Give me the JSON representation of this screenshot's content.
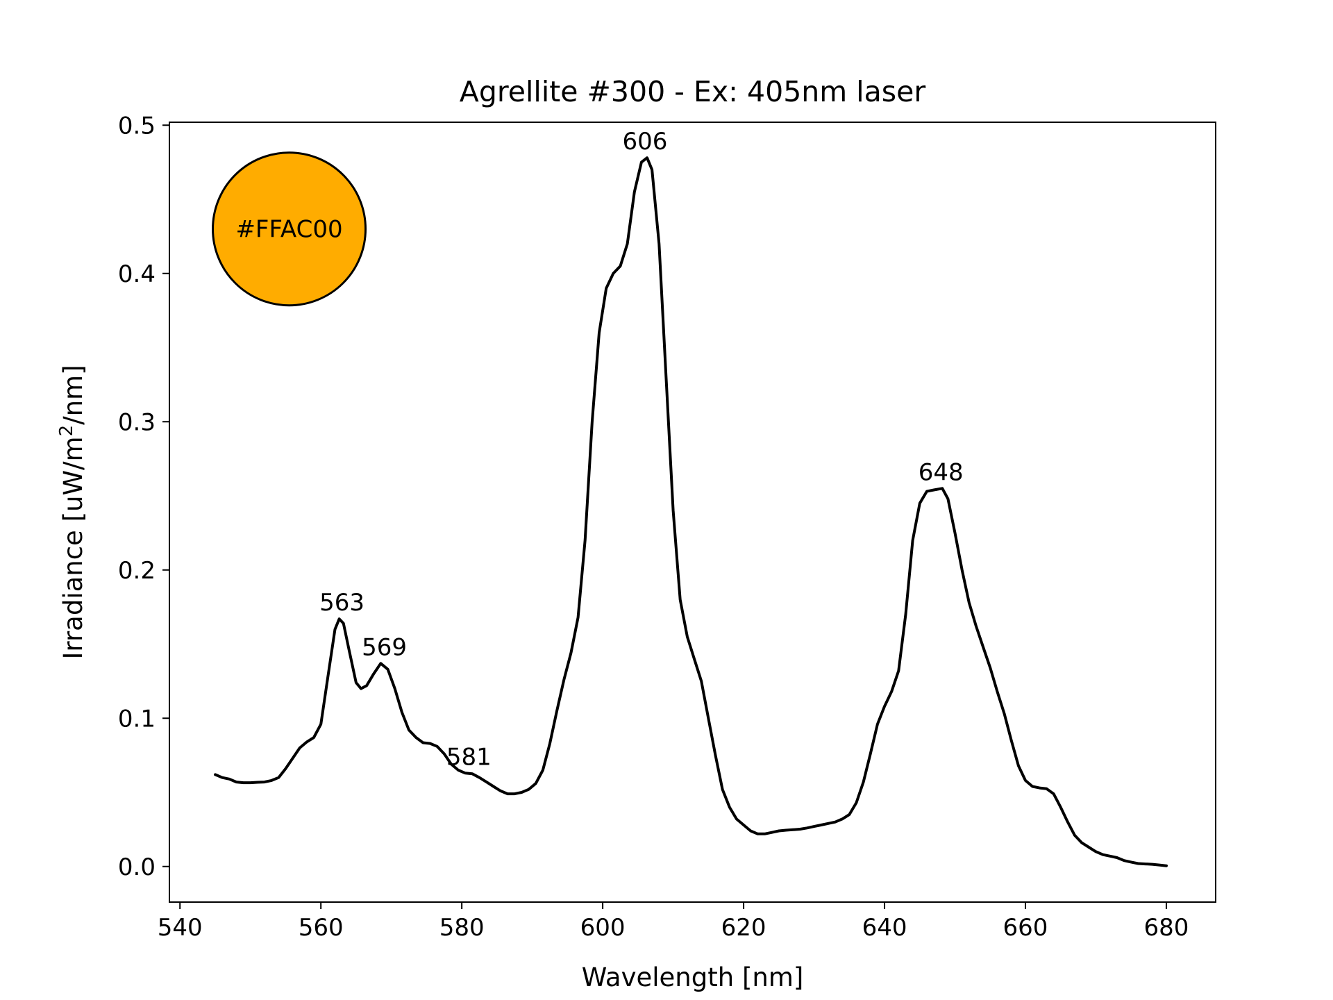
{
  "chart_data": {
    "type": "line",
    "title": "Agrellite #300 - Ex: 405nm laser",
    "xlabel": "Wavelength [nm]",
    "ylabel_main": "Irradiance [uW/m",
    "ylabel_sup": "2",
    "ylabel_tail": "/nm]",
    "xlim": [
      538.5,
      687
    ],
    "ylim": [
      -0.024,
      0.502
    ],
    "x_ticks": [
      540,
      560,
      580,
      600,
      620,
      640,
      660,
      680
    ],
    "x_tick_labels": [
      "540",
      "560",
      "580",
      "600",
      "620",
      "640",
      "660",
      "680"
    ],
    "y_ticks": [
      0.0,
      0.1,
      0.2,
      0.3,
      0.4,
      0.5
    ],
    "y_tick_labels": [
      "0.0",
      "0.1",
      "0.2",
      "0.3",
      "0.4",
      "0.5"
    ],
    "grid": false,
    "series": [
      {
        "color": "#000000",
        "points": [
          [
            545,
            0.062
          ],
          [
            546,
            0.06
          ],
          [
            547,
            0.059
          ],
          [
            548,
            0.057
          ],
          [
            549,
            0.0565
          ],
          [
            550,
            0.0565
          ],
          [
            551,
            0.0568
          ],
          [
            552,
            0.057
          ],
          [
            553,
            0.058
          ],
          [
            554,
            0.06
          ],
          [
            555,
            0.066
          ],
          [
            556,
            0.073
          ],
          [
            557,
            0.08
          ],
          [
            558,
            0.084
          ],
          [
            559,
            0.087
          ],
          [
            560,
            0.096
          ],
          [
            561,
            0.128
          ],
          [
            562,
            0.16
          ],
          [
            562.6,
            0.167
          ],
          [
            563.2,
            0.164
          ],
          [
            564,
            0.146
          ],
          [
            565,
            0.124
          ],
          [
            565.7,
            0.12
          ],
          [
            566.5,
            0.122
          ],
          [
            567.5,
            0.13
          ],
          [
            568.5,
            0.137
          ],
          [
            569.5,
            0.133
          ],
          [
            570.5,
            0.12
          ],
          [
            571.5,
            0.104
          ],
          [
            572.5,
            0.092
          ],
          [
            573.5,
            0.087
          ],
          [
            574.5,
            0.0835
          ],
          [
            575.5,
            0.083
          ],
          [
            576.5,
            0.081
          ],
          [
            577.5,
            0.076
          ],
          [
            578.5,
            0.069
          ],
          [
            579.5,
            0.065
          ],
          [
            580.5,
            0.063
          ],
          [
            581.5,
            0.0625
          ],
          [
            582.5,
            0.06
          ],
          [
            583.5,
            0.057
          ],
          [
            584.5,
            0.054
          ],
          [
            585.5,
            0.051
          ],
          [
            586.5,
            0.049
          ],
          [
            587.5,
            0.049
          ],
          [
            588.5,
            0.05
          ],
          [
            589.5,
            0.052
          ],
          [
            590.5,
            0.056
          ],
          [
            591.5,
            0.065
          ],
          [
            592.5,
            0.083
          ],
          [
            593.5,
            0.105
          ],
          [
            594.5,
            0.126
          ],
          [
            595.5,
            0.144
          ],
          [
            596.5,
            0.168
          ],
          [
            597.5,
            0.22
          ],
          [
            598.5,
            0.3
          ],
          [
            599.5,
            0.36
          ],
          [
            600.5,
            0.39
          ],
          [
            601.5,
            0.4
          ],
          [
            602.5,
            0.405
          ],
          [
            603.5,
            0.42
          ],
          [
            604.5,
            0.455
          ],
          [
            605.5,
            0.475
          ],
          [
            606.3,
            0.478
          ],
          [
            607.0,
            0.47
          ],
          [
            608,
            0.42
          ],
          [
            609,
            0.33
          ],
          [
            610,
            0.24
          ],
          [
            611,
            0.18
          ],
          [
            612,
            0.155
          ],
          [
            613,
            0.14
          ],
          [
            614,
            0.125
          ],
          [
            615,
            0.1
          ],
          [
            616,
            0.075
          ],
          [
            617,
            0.052
          ],
          [
            618,
            0.04
          ],
          [
            619,
            0.032
          ],
          [
            620,
            0.028
          ],
          [
            621,
            0.024
          ],
          [
            622,
            0.022
          ],
          [
            623,
            0.022
          ],
          [
            624,
            0.023
          ],
          [
            625,
            0.024
          ],
          [
            626,
            0.0245
          ],
          [
            627,
            0.0248
          ],
          [
            628,
            0.0252
          ],
          [
            629,
            0.026
          ],
          [
            630,
            0.027
          ],
          [
            631,
            0.028
          ],
          [
            632,
            0.029
          ],
          [
            633,
            0.03
          ],
          [
            634,
            0.032
          ],
          [
            635,
            0.035
          ],
          [
            636,
            0.043
          ],
          [
            637,
            0.057
          ],
          [
            638,
            0.076
          ],
          [
            639,
            0.096
          ],
          [
            640,
            0.108
          ],
          [
            641,
            0.118
          ],
          [
            642,
            0.132
          ],
          [
            643,
            0.17
          ],
          [
            644,
            0.22
          ],
          [
            645,
            0.245
          ],
          [
            646,
            0.253
          ],
          [
            647,
            0.254
          ],
          [
            648.2,
            0.255
          ],
          [
            649,
            0.248
          ],
          [
            650,
            0.225
          ],
          [
            651,
            0.2
          ],
          [
            652,
            0.178
          ],
          [
            653,
            0.162
          ],
          [
            654,
            0.148
          ],
          [
            655,
            0.134
          ],
          [
            656,
            0.118
          ],
          [
            657,
            0.103
          ],
          [
            658,
            0.085
          ],
          [
            659,
            0.068
          ],
          [
            660,
            0.058
          ],
          [
            661,
            0.054
          ],
          [
            662,
            0.053
          ],
          [
            663,
            0.0525
          ],
          [
            664,
            0.049
          ],
          [
            665,
            0.04
          ],
          [
            666,
            0.03
          ],
          [
            667,
            0.021
          ],
          [
            668,
            0.016
          ],
          [
            669,
            0.013
          ],
          [
            670,
            0.01
          ],
          [
            671,
            0.008
          ],
          [
            672,
            0.007
          ],
          [
            673,
            0.006
          ],
          [
            674,
            0.004
          ],
          [
            675,
            0.003
          ],
          [
            676,
            0.002
          ],
          [
            677,
            0.0017
          ],
          [
            678,
            0.0015
          ],
          [
            679,
            0.001
          ],
          [
            680,
            0.0005
          ]
        ]
      }
    ],
    "peak_labels": [
      {
        "text": "563",
        "x": 563,
        "y": 0.167
      },
      {
        "text": "569",
        "x": 569,
        "y": 0.137
      },
      {
        "text": "581",
        "x": 581,
        "y": 0.063
      },
      {
        "text": "606",
        "x": 606,
        "y": 0.478
      },
      {
        "text": "648",
        "x": 648,
        "y": 0.255
      }
    ],
    "swatch": {
      "color": "#FFAC00",
      "label": "#FFAC00"
    }
  }
}
